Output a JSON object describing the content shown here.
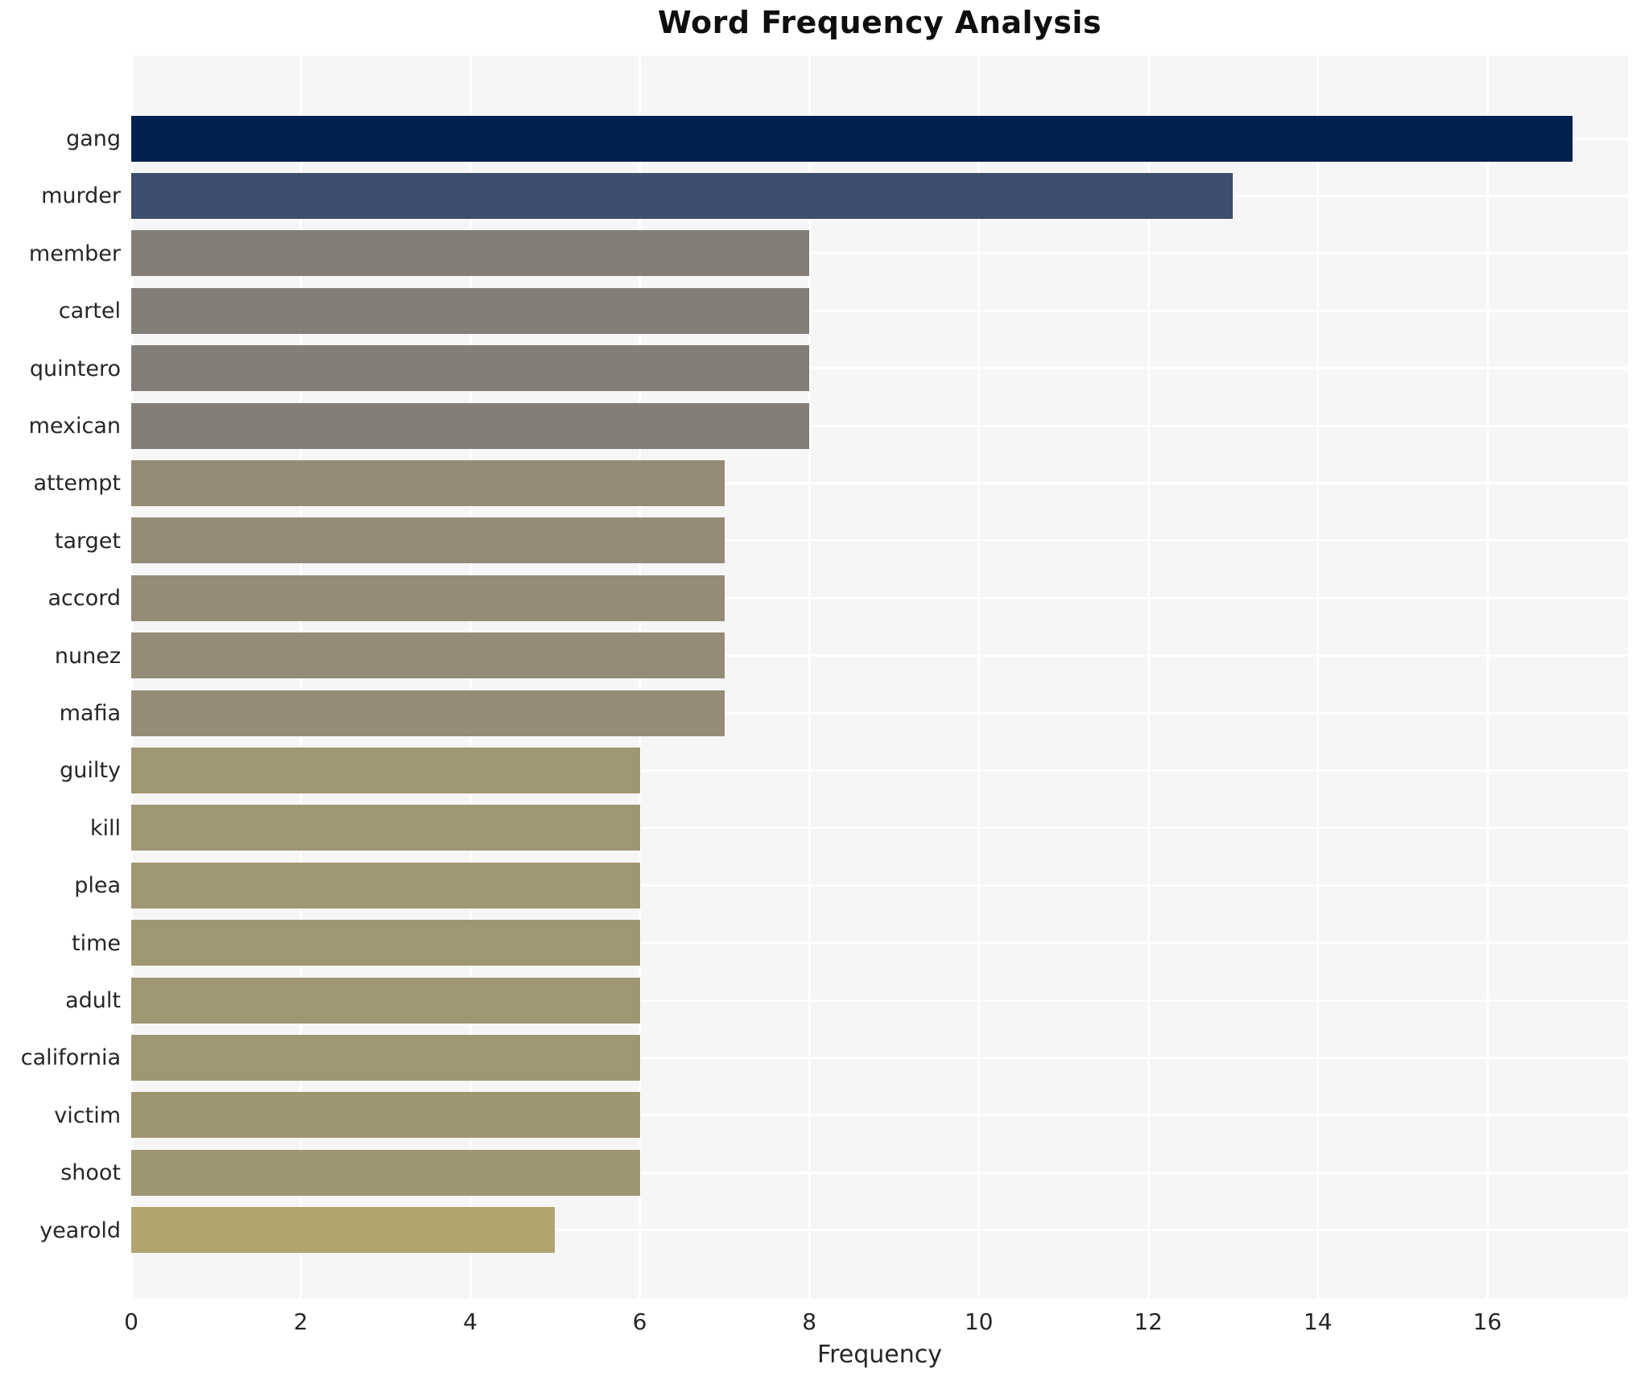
{
  "chart_data": {
    "type": "bar",
    "orientation": "horizontal",
    "title": "Word Frequency Analysis",
    "xlabel": "Frequency",
    "ylabel": "",
    "categories": [
      "gang",
      "murder",
      "member",
      "cartel",
      "quintero",
      "mexican",
      "attempt",
      "target",
      "accord",
      "nunez",
      "mafia",
      "guilty",
      "kill",
      "plea",
      "time",
      "adult",
      "california",
      "victim",
      "shoot",
      "yearold"
    ],
    "values": [
      17,
      13,
      8,
      8,
      8,
      8,
      7,
      7,
      7,
      7,
      7,
      6,
      6,
      6,
      6,
      6,
      6,
      6,
      6,
      5
    ],
    "bar_colors": [
      "#01224e",
      "#3f4e6e",
      "#837f78",
      "#837f78",
      "#837f78",
      "#837f78",
      "#948c76",
      "#948c76",
      "#948c76",
      "#948c76",
      "#948c76",
      "#9f9772",
      "#9f9772",
      "#9f9772",
      "#9f9772",
      "#9f9772",
      "#9f9772",
      "#9e9671",
      "#9e9671",
      "#b0a56e"
    ],
    "x_ticks": [
      0,
      2,
      4,
      6,
      8,
      10,
      12,
      14,
      16
    ],
    "xlim": [
      0,
      17.66
    ],
    "grid": true,
    "legend": false,
    "colors": {
      "figure_bg": "#ffffff",
      "plot_bg": "#f6f6f7",
      "grid": "#ffffff",
      "text": "#262626",
      "title": "#0f0f0f"
    }
  }
}
